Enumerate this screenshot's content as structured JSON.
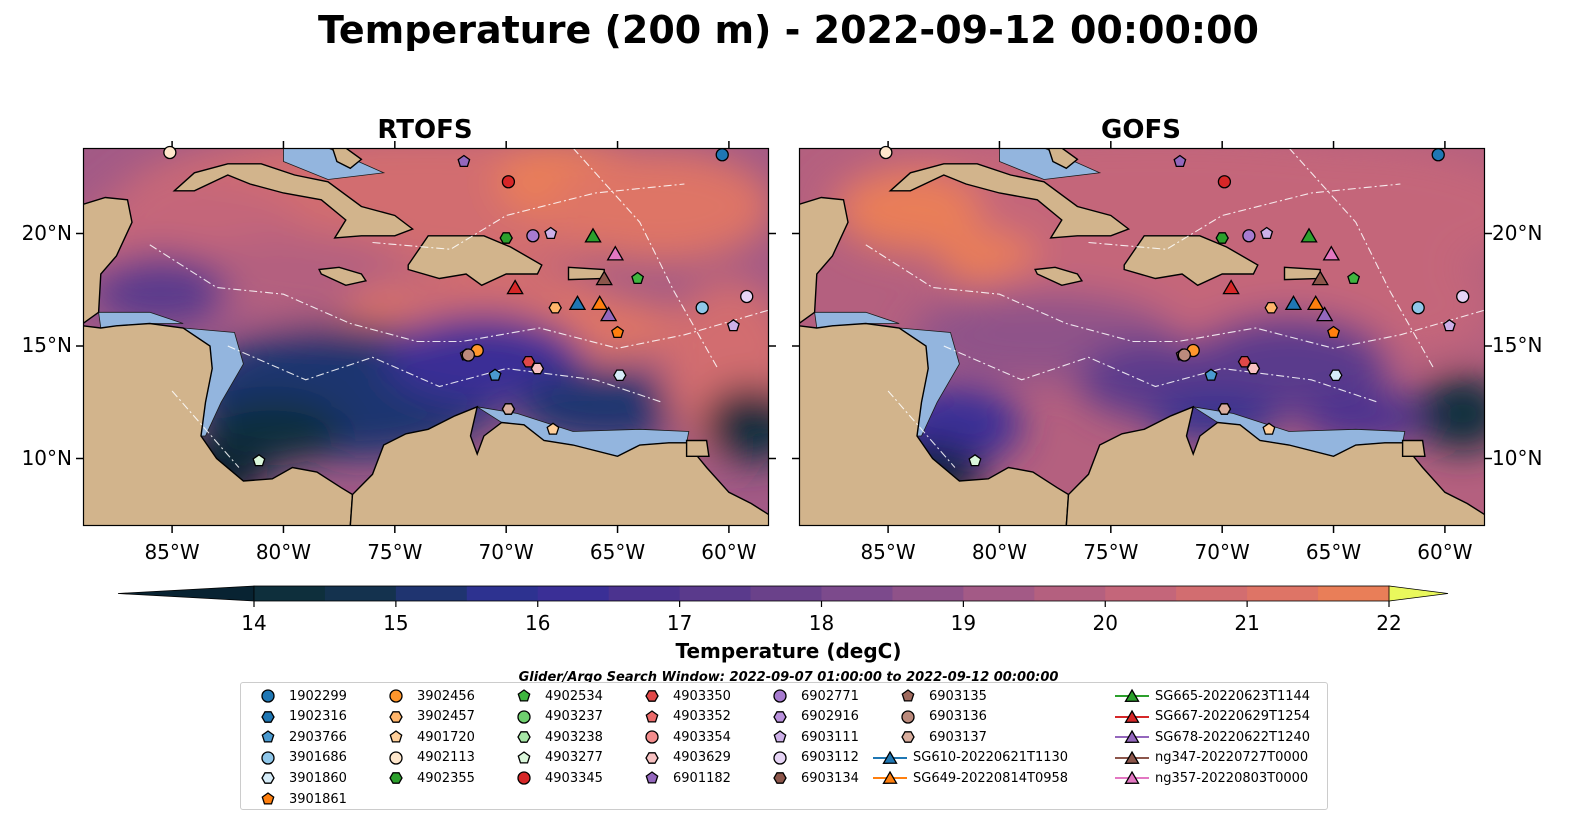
{
  "title": "Temperature (200 m) - 2022-09-12 00:00:00",
  "panels": [
    {
      "title": "RTOFS",
      "variant": "rtofs"
    },
    {
      "title": "GOFS",
      "variant": "gofs"
    }
  ],
  "longitude_ticks": [
    "85°W",
    "80°W",
    "75°W",
    "70°W",
    "65°W",
    "60°W"
  ],
  "longitude_values": [
    -85,
    -80,
    -75,
    -70,
    -65,
    -60
  ],
  "latitude_ticks": [
    "20°N",
    "15°N",
    "10°N"
  ],
  "latitude_values": [
    20,
    15,
    10
  ],
  "extent": {
    "lon": [
      -89,
      -58.2
    ],
    "lat": [
      7,
      23.8
    ]
  },
  "colorbar": {
    "label": "Temperature (degC)",
    "min": 14,
    "max": 22,
    "step": 0.5,
    "ticks": [
      "14",
      "15",
      "16",
      "17",
      "18",
      "19",
      "20",
      "21",
      "22"
    ],
    "colors": [
      "#0e2f3c",
      "#14324e",
      "#1f3470",
      "#2d3290",
      "#3a2f96",
      "#4b338f",
      "#5a3a8c",
      "#6a418a",
      "#7c4a8c",
      "#8f5289",
      "#a35a86",
      "#b4607f",
      "#c4667a",
      "#d26d70",
      "#de7466",
      "#e97e58",
      "#f48b4a",
      "#f99a42",
      "#fba94a",
      "#fcbe4d",
      "#f6d84d"
    ],
    "under_color": "#082332",
    "over_color": "#e9f85c"
  },
  "search_window": "Glider/Argo Search Window: 2022-09-07 01:00:00 to 2022-09-12 00:00:00",
  "legend": [
    {
      "label": "1902299",
      "marker": "circle",
      "color": "#1f77b4"
    },
    {
      "label": "1902316",
      "marker": "hexagon",
      "color": "#1f77b4"
    },
    {
      "label": "2903766",
      "marker": "pentagon",
      "color": "#4a9ad0"
    },
    {
      "label": "3901686",
      "marker": "circle",
      "color": "#8fc7ea"
    },
    {
      "label": "3901860",
      "marker": "hexagon",
      "color": "#d6ecf8"
    },
    {
      "label": "3901861",
      "marker": "pentagon",
      "color": "#ff7f0e"
    },
    {
      "label": "3902456",
      "marker": "circle",
      "color": "#ff962c"
    },
    {
      "label": "3902457",
      "marker": "hexagon",
      "color": "#ffb56b"
    },
    {
      "label": "4901720",
      "marker": "pentagon",
      "color": "#ffcf9a"
    },
    {
      "label": "4902113",
      "marker": "circle",
      "color": "#ffe7cc"
    },
    {
      "label": "4902355",
      "marker": "hexagon",
      "color": "#2ca02c"
    },
    {
      "label": "4902534",
      "marker": "pentagon",
      "color": "#3fb53f"
    },
    {
      "label": "4903237",
      "marker": "circle",
      "color": "#6fd06f"
    },
    {
      "label": "4903238",
      "marker": "hexagon",
      "color": "#a6e6a6"
    },
    {
      "label": "4903277",
      "marker": "pentagon",
      "color": "#dbf7db"
    },
    {
      "label": "4903345",
      "marker": "circle",
      "color": "#d62728"
    },
    {
      "label": "4903350",
      "marker": "hexagon",
      "color": "#e04848"
    },
    {
      "label": "4903352",
      "marker": "pentagon",
      "color": "#ea6a6a"
    },
    {
      "label": "4903354",
      "marker": "circle",
      "color": "#f28c8c"
    },
    {
      "label": "4903629",
      "marker": "hexagon",
      "color": "#f7c1c1"
    },
    {
      "label": "6901182",
      "marker": "pentagon",
      "color": "#9467bd"
    },
    {
      "label": "6902771",
      "marker": "circle",
      "color": "#a77bcf"
    },
    {
      "label": "6902916",
      "marker": "hexagon",
      "color": "#b991dc"
    },
    {
      "label": "6903111",
      "marker": "pentagon",
      "color": "#cdb0e8"
    },
    {
      "label": "6903112",
      "marker": "circle",
      "color": "#e6d4f5"
    },
    {
      "label": "6903134",
      "marker": "hexagon",
      "color": "#8c564b"
    },
    {
      "label": "6903135",
      "marker": "pentagon",
      "color": "#a06b5f"
    },
    {
      "label": "6903136",
      "marker": "circle",
      "color": "#bb8a7c"
    },
    {
      "label": "6903137",
      "marker": "hexagon",
      "color": "#d9ae9e"
    },
    {
      "label": "SG610-20220621T1130",
      "marker": "triangle",
      "color": "#1f77b4"
    },
    {
      "label": "SG649-20220814T0958",
      "marker": "triangle",
      "color": "#ff7f0e"
    },
    {
      "label": "SG665-20220623T1144",
      "marker": "triangle",
      "color": "#2ca02c"
    },
    {
      "label": "SG667-20220629T1254",
      "marker": "triangle",
      "color": "#d62728"
    },
    {
      "label": "SG678-20220622T1240",
      "marker": "triangle",
      "color": "#9467bd"
    },
    {
      "label": "ng347-20220727T0000",
      "marker": "triangle",
      "color": "#8c564b"
    },
    {
      "label": "ng357-20220803T0000",
      "marker": "triangle",
      "color": "#e377c2"
    }
  ],
  "floats": [
    {
      "id": "1902299",
      "lon": -60.3,
      "lat": 23.5
    },
    {
      "id": "3901686",
      "lon": -61.2,
      "lat": 16.7
    },
    {
      "id": "3901860",
      "lon": -64.9,
      "lat": 13.7
    },
    {
      "id": "3901861",
      "lon": -65.0,
      "lat": 15.6
    },
    {
      "id": "2903766",
      "lon": -70.5,
      "lat": 13.7
    },
    {
      "id": "3902456",
      "lon": -71.3,
      "lat": 14.8
    },
    {
      "id": "3902457",
      "lon": -67.8,
      "lat": 16.7
    },
    {
      "id": "4901720",
      "lon": -67.9,
      "lat": 11.3
    },
    {
      "id": "4902113",
      "lon": -85.1,
      "lat": 23.6
    },
    {
      "id": "4903277",
      "lon": -81.1,
      "lat": 9.9
    },
    {
      "id": "4902355",
      "lon": -70.0,
      "lat": 19.8
    },
    {
      "id": "4902534",
      "lon": -64.1,
      "lat": 18.0
    },
    {
      "id": "4903345",
      "lon": -69.9,
      "lat": 22.3
    },
    {
      "id": "4903350",
      "lon": -69.0,
      "lat": 14.3
    },
    {
      "id": "4903629",
      "lon": -68.6,
      "lat": 14.0
    },
    {
      "id": "6901182",
      "lon": -71.9,
      "lat": 23.2
    },
    {
      "id": "6902771",
      "lon": -68.8,
      "lat": 19.9
    },
    {
      "id": "6903111",
      "lon": -68.0,
      "lat": 20.0
    },
    {
      "id": "6903112",
      "lon": -59.2,
      "lat": 17.2
    },
    {
      "id": "6903134",
      "lon": -69.9,
      "lat": 12.2
    },
    {
      "id": "6903135",
      "lon": -71.8,
      "lat": 14.6
    },
    {
      "id": "6903136",
      "lon": -71.7,
      "lat": 14.6
    },
    {
      "id": "6903137",
      "lon": -69.9,
      "lat": 12.2
    },
    {
      "id": "6903111b",
      "lon": -59.8,
      "lat": 15.9
    }
  ],
  "gliders": [
    {
      "id": "SG610-20220621T1130",
      "lon": -66.8,
      "lat": 16.9
    },
    {
      "id": "SG649-20220814T0958",
      "lon": -65.8,
      "lat": 16.9
    },
    {
      "id": "SG665-20220623T1144",
      "lon": -66.1,
      "lat": 19.9
    },
    {
      "id": "SG667-20220629T1254",
      "lon": -69.6,
      "lat": 17.6
    },
    {
      "id": "SG678-20220622T1240",
      "lon": -65.4,
      "lat": 16.4
    },
    {
      "id": "ng347-20220727T0000",
      "lon": -65.6,
      "lat": 18.0
    },
    {
      "id": "ng357-20220803T0000",
      "lon": -65.1,
      "lat": 19.1
    }
  ]
}
